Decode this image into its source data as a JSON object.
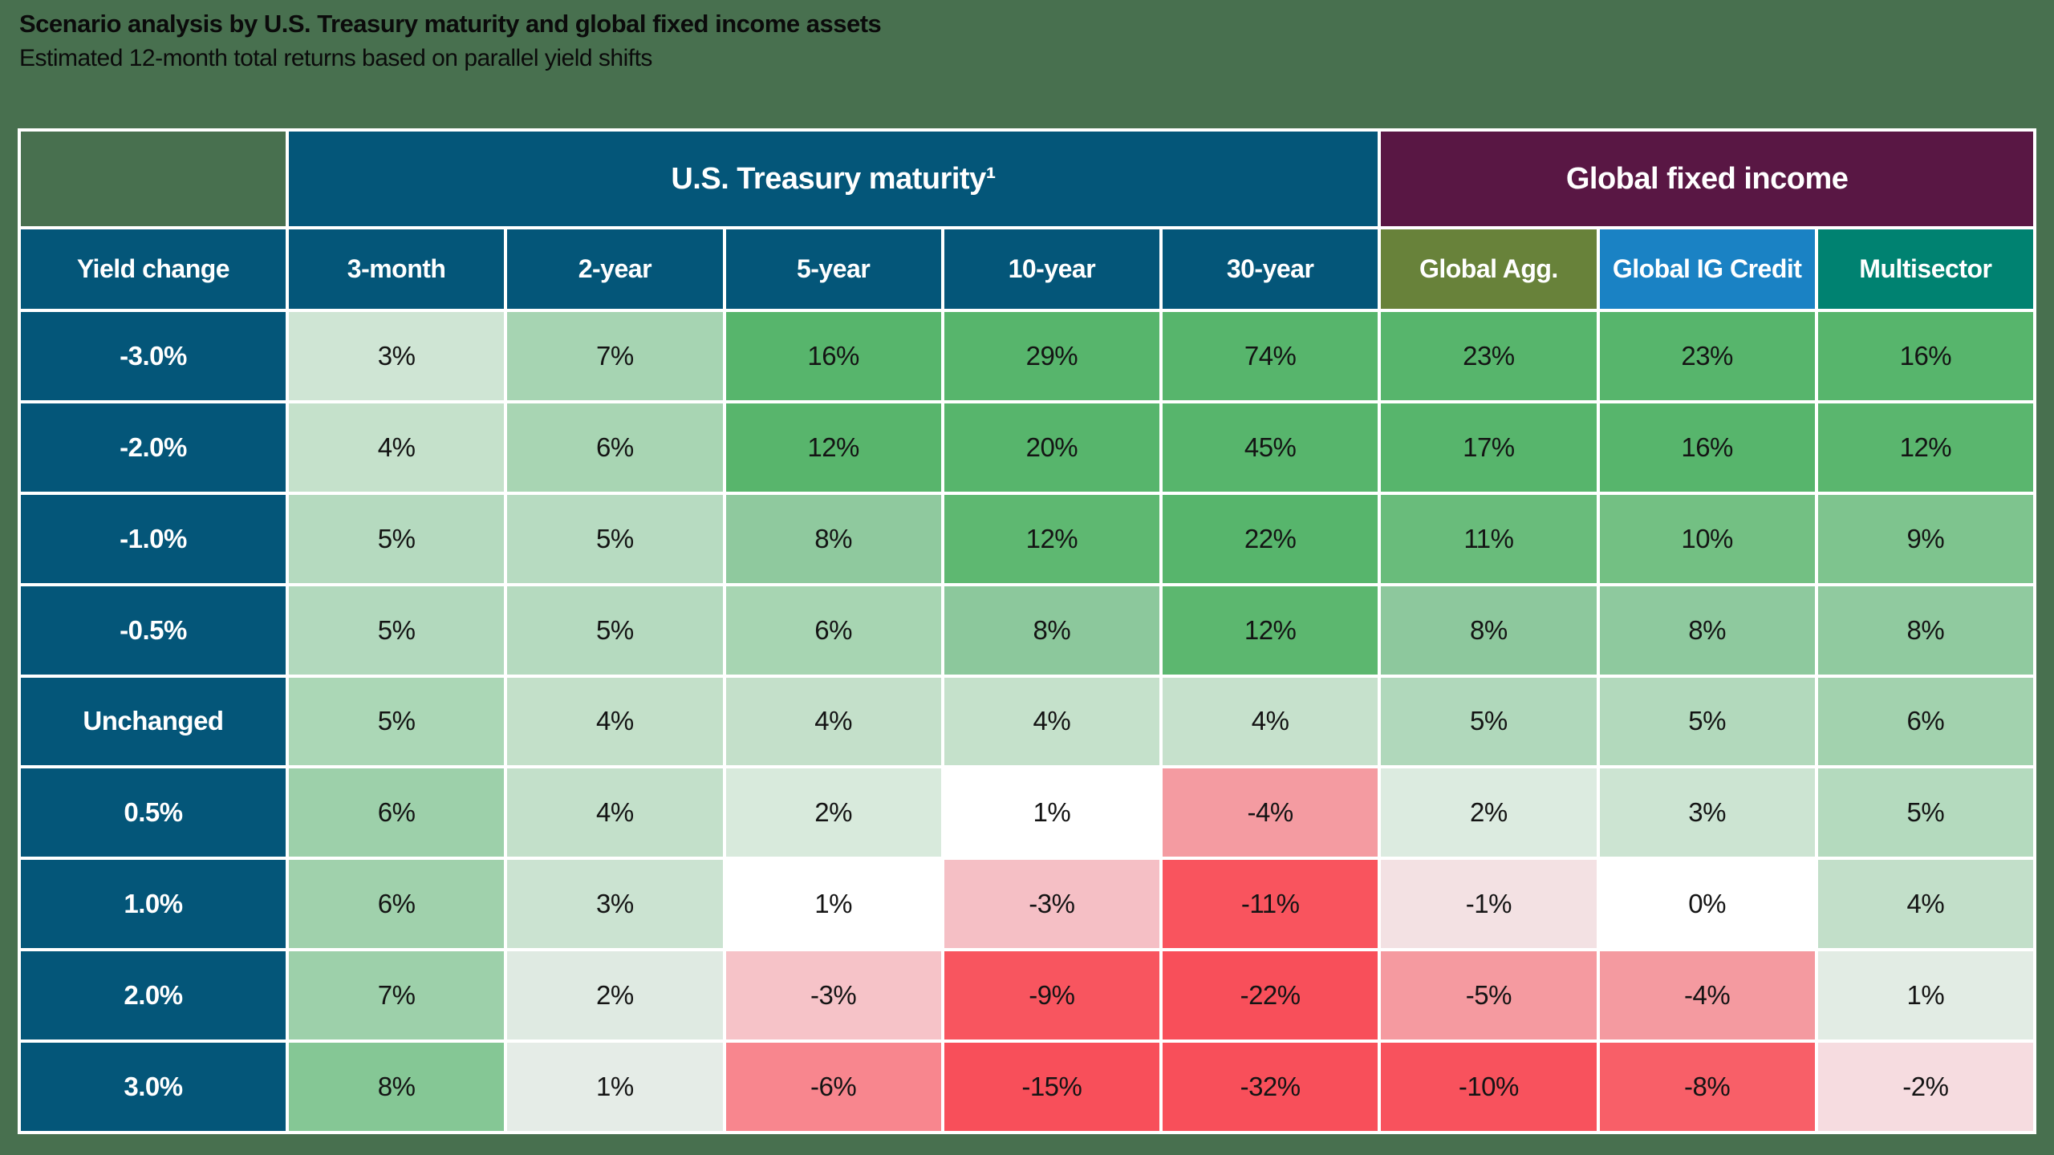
{
  "page": {
    "background_color": "#48704F",
    "title": "Scenario analysis by U.S. Treasury maturity and global fixed income assets",
    "subtitle": "Estimated 12-month total returns based on parallel yield shifts"
  },
  "chart_data": {
    "type": "heatmap",
    "title": "Scenario analysis by U.S. Treasury maturity and global fixed income assets",
    "subtitle": "Estimated 12-month total returns based on parallel yield shifts",
    "value_unit": "percent (estimated 12-month total return)",
    "row_axis_label": "Yield change",
    "row_header_color": "#045679",
    "grid_line_color": "#FFFFFF",
    "positive_color_max": "#57B56C",
    "negative_color_max": "#F84F5A",
    "column_groups": [
      {
        "label": "U.S. Treasury maturity¹",
        "span": 5,
        "color": "#045679"
      },
      {
        "label": "Global fixed income",
        "span": 3,
        "color": "#591744"
      }
    ],
    "columns": [
      {
        "label": "3-month",
        "header_color": "#045679"
      },
      {
        "label": "2-year",
        "header_color": "#045679"
      },
      {
        "label": "5-year",
        "header_color": "#045679"
      },
      {
        "label": "10-year",
        "header_color": "#045679"
      },
      {
        "label": "30-year",
        "header_color": "#045679"
      },
      {
        "label": "Global Agg.",
        "header_color": "#68823A"
      },
      {
        "label": "Global IG Credit",
        "header_color": "#1A82C4"
      },
      {
        "label": "Multisector",
        "header_color": "#008271"
      }
    ],
    "rows": [
      {
        "label": "-3.0%",
        "values": [
          "3%",
          "7%",
          "16%",
          "29%",
          "74%",
          "23%",
          "23%",
          "16%"
        ],
        "colors": [
          "#CFE5D4",
          "#A6D4B2",
          "#57B56C",
          "#57B56C",
          "#57B56C",
          "#57B56C",
          "#57B56C",
          "#57B56C"
        ]
      },
      {
        "label": "-2.0%",
        "values": [
          "4%",
          "6%",
          "12%",
          "20%",
          "45%",
          "17%",
          "16%",
          "12%"
        ],
        "colors": [
          "#C5E1CB",
          "#A8D5B3",
          "#58B56C",
          "#57B56C",
          "#57B56C",
          "#57B56C",
          "#57B56C",
          "#5AB66E"
        ]
      },
      {
        "label": "-1.0%",
        "values": [
          "5%",
          "5%",
          "8%",
          "12%",
          "22%",
          "11%",
          "10%",
          "9%"
        ],
        "colors": [
          "#B5DABF",
          "#B7DBC1",
          "#8FC99E",
          "#5EB871",
          "#57B56C",
          "#69BC7B",
          "#73C083",
          "#7EC48E"
        ]
      },
      {
        "label": "-0.5%",
        "values": [
          "5%",
          "5%",
          "6%",
          "8%",
          "12%",
          "8%",
          "8%",
          "8%"
        ],
        "colors": [
          "#B2D9BD",
          "#B5DABF",
          "#A7D5B2",
          "#8CC89C",
          "#5CB76F",
          "#8DC89D",
          "#8EC99E",
          "#90CA9F"
        ]
      },
      {
        "label": "Unchanged",
        "values": [
          "5%",
          "4%",
          "4%",
          "4%",
          "4%",
          "5%",
          "5%",
          "6%"
        ],
        "colors": [
          "#ABD7B6",
          "#C3E0C9",
          "#C4E0CA",
          "#C5E1CB",
          "#C6E1CC",
          "#B0D8BB",
          "#B2D9BC",
          "#A2D2AE"
        ]
      },
      {
        "label": "0.5%",
        "values": [
          "6%",
          "4%",
          "2%",
          "1%",
          "-4%",
          "2%",
          "3%",
          "5%"
        ],
        "colors": [
          "#9DD0AA",
          "#C3E0CA",
          "#D8EADC",
          "#FFFFFF",
          "#F49BA1",
          "#DCEBE0",
          "#CCE4D2",
          "#B4DABE"
        ]
      },
      {
        "label": "1.0%",
        "values": [
          "6%",
          "3%",
          "1%",
          "-3%",
          "-11%",
          "-1%",
          "0%",
          "4%"
        ],
        "colors": [
          "#A0D1AC",
          "#CBE3D1",
          "#FFFFFF",
          "#F5BFC5",
          "#F9545E",
          "#F3E1E3",
          "#FFFFFF",
          "#C2DFC9"
        ]
      },
      {
        "label": "2.0%",
        "values": [
          "7%",
          "2%",
          "-3%",
          "-9%",
          "-22%",
          "-5%",
          "-4%",
          "1%"
        ],
        "colors": [
          "#9DD0AA",
          "#DFEAE2",
          "#F6C3C8",
          "#F8555F",
          "#F84F5A",
          "#F59AA0",
          "#F49AA0",
          "#E2ECE4"
        ]
      },
      {
        "label": "3.0%",
        "values": [
          "8%",
          "1%",
          "-6%",
          "-15%",
          "-32%",
          "-10%",
          "-8%",
          "-2%"
        ],
        "colors": [
          "#85C795",
          "#E5ECE7",
          "#F8868E",
          "#F84F5A",
          "#F84F5A",
          "#F8525D",
          "#F85F68",
          "#F6DCE0"
        ]
      }
    ]
  }
}
